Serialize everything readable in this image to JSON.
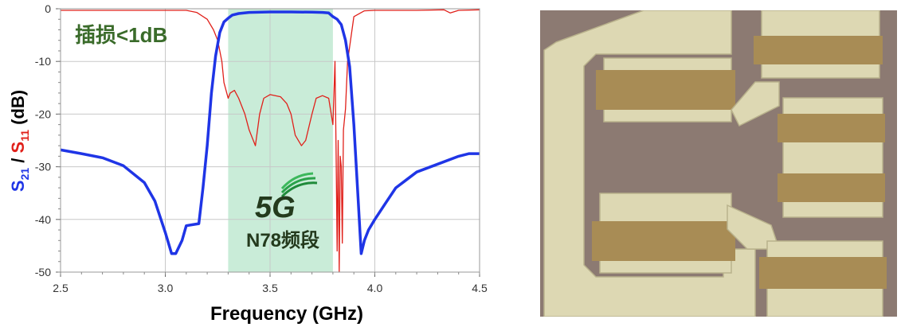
{
  "chart_data": {
    "type": "line",
    "xlabel": "Frequency (GHz)",
    "ylabel": {
      "s21_main": "S",
      "s21_sub": "21",
      "sep": " / ",
      "s11_main": "S",
      "s11_sub": "11",
      "unit": " (dB)"
    },
    "xlim": [
      2.5,
      4.5
    ],
    "ylim": [
      -50,
      0
    ],
    "x_ticks": [
      "2.5",
      "3.0",
      "3.5",
      "4.0",
      "4.5"
    ],
    "y_ticks": [
      "0",
      "-10",
      "-20",
      "-30",
      "-40",
      "-50"
    ],
    "grid": true,
    "band": {
      "x_start": 3.3,
      "x_end": 3.8,
      "color": "#c9ecd8"
    },
    "annotations": {
      "insertion_loss": "插损<1dB",
      "logo_text": "5G",
      "band_label": "N78频段"
    },
    "colors": {
      "s21": "#1f35e6",
      "s11": "#e0201a",
      "annotation_green": "#3a6b2a",
      "band_text": "#243a1d"
    },
    "series": [
      {
        "name": "S21",
        "line_width": "thick",
        "x": [
          2.5,
          2.6,
          2.7,
          2.8,
          2.9,
          2.95,
          3.0,
          3.03,
          3.05,
          3.08,
          3.1,
          3.13,
          3.16,
          3.18,
          3.2,
          3.22,
          3.24,
          3.26,
          3.28,
          3.3,
          3.32,
          3.35,
          3.4,
          3.5,
          3.6,
          3.7,
          3.75,
          3.78,
          3.8,
          3.82,
          3.84,
          3.86,
          3.88,
          3.9,
          3.92,
          3.935,
          3.95,
          3.97,
          4.0,
          4.05,
          4.1,
          4.2,
          4.3,
          4.4,
          4.45,
          4.5
        ],
        "y": [
          -26.8,
          -27.5,
          -28.3,
          -29.8,
          -33,
          -36.5,
          -42.5,
          -46.5,
          -46.5,
          -44,
          -41.2,
          -41,
          -40.8,
          -34,
          -26,
          -16,
          -9,
          -4.5,
          -2.5,
          -1.8,
          -1.2,
          -0.9,
          -0.7,
          -0.6,
          -0.6,
          -0.65,
          -0.7,
          -0.8,
          -1.5,
          -2,
          -3,
          -6,
          -11,
          -22,
          -36,
          -46.5,
          -44,
          -42,
          -40,
          -37,
          -34,
          -31,
          -29.5,
          -28,
          -27.5,
          -27.5
        ]
      },
      {
        "name": "S11",
        "line_width": "thin",
        "x": [
          2.5,
          2.8,
          3.1,
          3.15,
          3.2,
          3.23,
          3.25,
          3.27,
          3.28,
          3.3,
          3.31,
          3.33,
          3.35,
          3.38,
          3.4,
          3.43,
          3.45,
          3.47,
          3.5,
          3.55,
          3.58,
          3.6,
          3.62,
          3.65,
          3.67,
          3.7,
          3.72,
          3.75,
          3.78,
          3.8,
          3.81,
          3.815,
          3.82,
          3.825,
          3.83,
          3.835,
          3.84,
          3.845,
          3.85,
          3.86,
          3.87,
          3.9,
          3.95,
          4.0,
          4.2,
          4.33,
          4.36,
          4.4,
          4.5
        ],
        "y": [
          -0.3,
          -0.3,
          -0.3,
          -0.7,
          -2,
          -4,
          -6,
          -10,
          -14,
          -17,
          -16,
          -15.5,
          -17,
          -20,
          -23,
          -26,
          -20,
          -17,
          -16.3,
          -16.7,
          -18,
          -20,
          -24,
          -26,
          -25,
          -20,
          -17,
          -16.5,
          -17,
          -22,
          -10,
          -26,
          -46,
          -25,
          -50,
          -28,
          -30,
          -44.5,
          -23,
          -19,
          -10,
          -1.5,
          -0.4,
          -0.3,
          -0.3,
          -0.2,
          -0.8,
          -0.3,
          -0.2
        ]
      }
    ]
  },
  "photo": {
    "label": "filter-micrograph",
    "background": "#8c7a72",
    "metal": "#ddd8b3",
    "resonator": "#a88c55"
  }
}
